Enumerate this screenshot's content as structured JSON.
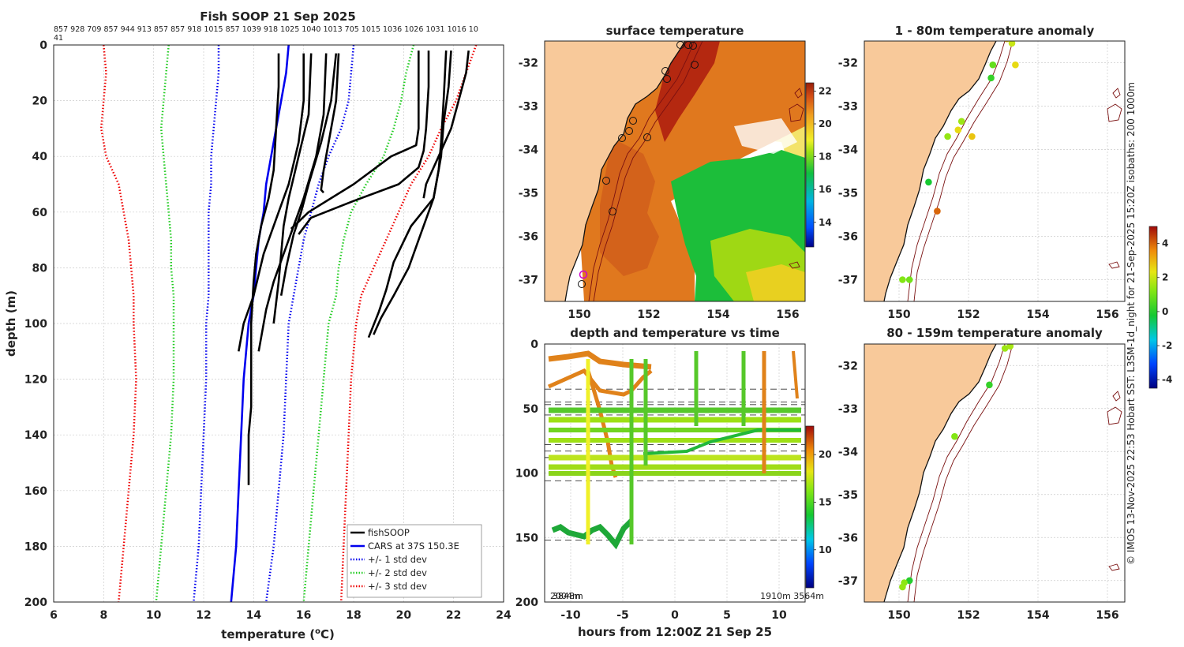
{
  "chart_data": [
    {
      "type": "line",
      "title": "Fish SOOP 21 Sep 2025",
      "xlabel": "temperature (",
      "xlabel_sup": "o",
      "xlabel_tail": "C)",
      "ylabel": "depth (m)",
      "xlim": [
        6,
        24
      ],
      "ylim": [
        0,
        200
      ],
      "xticks": [
        6,
        8,
        10,
        12,
        14,
        16,
        18,
        20,
        22,
        24
      ],
      "yticks": [
        0,
        20,
        40,
        60,
        80,
        100,
        120,
        140,
        160,
        180,
        200
      ],
      "top_labels_line1": "857 928 709 857 944 913 857 857 918 1015 857 1039 918 1025 1040 1013 705 1015 1036 1026 1031 1016 10",
      "top_labels_line2": "41",
      "legend": [
        "fishSOOP",
        "CARS at 37S 150.3E",
        "+/- 1 std dev",
        "+/- 2 std dev",
        "+/- 3 std dev"
      ],
      "series": [
        {
          "name": "CARS at 37S 150.3E",
          "color": "#0000ee",
          "style": "solid",
          "temp": [
            15.4,
            15.3,
            15.1,
            14.9,
            14.7,
            14.5,
            14.4,
            14.2,
            14.1,
            14.0,
            13.8,
            13.6,
            13.5,
            13.4,
            13.3,
            13.2,
            13.1
          ],
          "depth": [
            0,
            10,
            20,
            30,
            40,
            50,
            60,
            70,
            80,
            90,
            100,
            120,
            140,
            160,
            180,
            190,
            200
          ]
        },
        {
          "name": "-1 std",
          "color": "#0000ee",
          "style": "dot",
          "temp": [
            12.6,
            12.6,
            12.5,
            12.4,
            12.3,
            12.3,
            12.2,
            12.2,
            12.2,
            12.2,
            12.1,
            12.1,
            12.0,
            11.9,
            11.8,
            11.6
          ],
          "depth": [
            0,
            10,
            20,
            30,
            40,
            50,
            60,
            70,
            80,
            90,
            100,
            120,
            140,
            160,
            180,
            200
          ]
        },
        {
          "name": "+1 std",
          "color": "#0000ee",
          "style": "dot",
          "temp": [
            18.0,
            17.9,
            17.8,
            17.5,
            17.0,
            16.6,
            16.3,
            16.0,
            15.8,
            15.6,
            15.4,
            15.3,
            15.2,
            15.0,
            14.8,
            14.5
          ],
          "depth": [
            0,
            10,
            20,
            30,
            40,
            50,
            60,
            70,
            80,
            90,
            100,
            120,
            140,
            160,
            180,
            200
          ]
        },
        {
          "name": "-2 std",
          "color": "#22cc22",
          "style": "dot",
          "temp": [
            10.6,
            10.5,
            10.4,
            10.3,
            10.4,
            10.5,
            10.6,
            10.7,
            10.7,
            10.8,
            10.8,
            10.8,
            10.7,
            10.5,
            10.3,
            10.1
          ],
          "depth": [
            0,
            10,
            20,
            30,
            40,
            50,
            60,
            70,
            80,
            90,
            100,
            120,
            140,
            160,
            180,
            200
          ]
        },
        {
          "name": "+2 std",
          "color": "#22cc22",
          "style": "dot",
          "temp": [
            20.4,
            20.1,
            19.9,
            19.6,
            19.2,
            18.5,
            17.9,
            17.6,
            17.4,
            17.3,
            17.0,
            16.8,
            16.6,
            16.4,
            16.2,
            16.0
          ],
          "depth": [
            0,
            10,
            20,
            30,
            40,
            50,
            60,
            70,
            80,
            90,
            100,
            120,
            140,
            160,
            180,
            200
          ]
        },
        {
          "name": "-3 std",
          "color": "#ee0000",
          "style": "dot",
          "temp": [
            8.0,
            8.1,
            8.0,
            7.9,
            8.1,
            8.6,
            8.8,
            9.0,
            9.1,
            9.2,
            9.2,
            9.3,
            9.2,
            9.0,
            8.8,
            8.6
          ],
          "depth": [
            0,
            10,
            20,
            30,
            40,
            50,
            60,
            70,
            80,
            90,
            100,
            120,
            140,
            160,
            180,
            200
          ]
        },
        {
          "name": "+3 std",
          "color": "#ee0000",
          "style": "dot",
          "temp": [
            22.9,
            22.5,
            22.1,
            21.5,
            21.0,
            20.3,
            19.8,
            19.3,
            18.8,
            18.3,
            18.1,
            17.9,
            17.8,
            17.7,
            17.6,
            17.5
          ],
          "depth": [
            0,
            10,
            20,
            30,
            40,
            50,
            60,
            70,
            80,
            90,
            100,
            120,
            140,
            160,
            180,
            200
          ]
        },
        {
          "name": "fishSOOP",
          "color": "#000000",
          "style": "solid",
          "profiles": [
            {
              "temp": [
                15.0,
                15.0,
                14.9,
                14.8,
                14.6,
                14.3,
                14.1,
                14.0,
                13.9,
                13.9,
                13.9,
                13.8,
                13.8,
                13.8
              ],
              "depth": [
                3,
                15,
                30,
                45,
                55,
                65,
                75,
                85,
                100,
                115,
                130,
                140,
                150,
                158
              ]
            },
            {
              "temp": [
                16.0,
                16.0,
                15.8,
                15.4,
                15.0,
                14.4,
                14.0,
                13.6,
                13.4
              ],
              "depth": [
                3,
                20,
                35,
                50,
                60,
                75,
                90,
                100,
                110
              ]
            },
            {
              "temp": [
                16.9,
                16.8,
                16.5,
                16.0,
                15.6,
                15.2,
                14.8,
                14.5,
                14.2
              ],
              "depth": [
                3,
                25,
                40,
                55,
                65,
                75,
                85,
                95,
                110
              ]
            },
            {
              "temp": [
                17.4,
                17.3,
                17.0,
                16.8,
                16.7,
                16.8
              ],
              "depth": [
                3,
                20,
                35,
                45,
                52,
                53
              ]
            },
            {
              "temp": [
                16.3,
                16.2,
                15.8,
                15.4,
                15.2,
                15.1,
                15.0,
                14.8
              ],
              "depth": [
                3,
                25,
                40,
                55,
                65,
                75,
                85,
                100
              ]
            },
            {
              "temp": [
                17.3,
                17.1,
                16.7,
                16.2,
                15.9,
                15.6,
                15.3,
                15.1
              ],
              "depth": [
                3,
                20,
                35,
                50,
                60,
                68,
                80,
                90
              ]
            },
            {
              "temp": [
                20.6,
                20.6,
                20.6,
                20.5,
                19.5,
                18.0,
                16.2,
                15.5
              ],
              "depth": [
                2,
                20,
                30,
                36,
                40,
                50,
                60,
                66
              ]
            },
            {
              "temp": [
                21.0,
                21.0,
                20.9,
                20.8,
                20.6,
                19.8,
                18.0,
                16.3,
                15.8
              ],
              "depth": [
                2,
                15,
                30,
                38,
                44,
                50,
                56,
                62,
                68
              ]
            },
            {
              "temp": [
                21.7,
                21.6,
                21.5,
                21.4,
                21.2,
                20.3,
                19.6,
                19.3,
                19.0,
                18.6
              ],
              "depth": [
                2,
                20,
                35,
                45,
                55,
                65,
                78,
                88,
                96,
                105
              ]
            },
            {
              "temp": [
                22.6,
                22.5,
                22.2,
                21.9,
                21.4,
                20.9,
                20.8
              ],
              "depth": [
                2,
                10,
                20,
                30,
                40,
                50,
                55
              ]
            },
            {
              "temp": [
                21.9,
                21.8,
                21.6,
                21.5,
                21.3,
                21.2,
                21.0,
                20.6,
                20.2,
                19.6,
                19.1,
                18.8
              ],
              "depth": [
                2,
                15,
                28,
                40,
                50,
                55,
                60,
                70,
                80,
                90,
                98,
                104
              ]
            }
          ]
        }
      ]
    },
    {
      "type": "heatmap",
      "title": "surface temperature",
      "xticks": [
        150,
        152,
        154,
        156
      ],
      "yticks": [
        -32,
        -33,
        -34,
        -35,
        -36,
        -37
      ],
      "xlim": [
        149.0,
        156.5
      ],
      "ylim": [
        -37.5,
        -31.5
      ],
      "colorbar_ticks": [
        14,
        16,
        18,
        20,
        22
      ],
      "colorbar_range": [
        12.5,
        22.5
      ]
    },
    {
      "type": "scatter",
      "title": "depth and temperature vs time",
      "xlabel": "hours from 12:00Z 21 Sep 25",
      "xticks": [
        -10,
        -5,
        0,
        5,
        10
      ],
      "yticks": [
        0,
        50,
        100,
        150,
        200
      ],
      "xlim": [
        -12.5,
        12.5
      ],
      "ylim": [
        0,
        200
      ],
      "colorbar_ticks": [
        10,
        15,
        20
      ],
      "colorbar_range": [
        6,
        23
      ],
      "corner_label_left": "2004m",
      "corner_label_left2": "3848m",
      "corner_label_right": "1910m  3564m",
      "dashed_depths": [
        35,
        45,
        47,
        55,
        78,
        83,
        88,
        106,
        152
      ]
    },
    {
      "type": "scatter",
      "title": "1 - 80m temperature anomaly",
      "xticks": [
        150,
        152,
        154,
        156
      ],
      "yticks": [
        -32,
        -33,
        -34,
        -35,
        -36,
        -37
      ],
      "xlim": [
        149.0,
        156.5
      ],
      "ylim": [
        -37.5,
        -31.5
      ],
      "points": [
        {
          "lon": 153.1,
          "lat": -31.45,
          "anom": 2.8
        },
        {
          "lon": 153.25,
          "lat": -31.55,
          "anom": 2.0
        },
        {
          "lon": 153.35,
          "lat": -32.05,
          "anom": 2.5
        },
        {
          "lon": 152.7,
          "lat": -32.05,
          "anom": 0.8
        },
        {
          "lon": 152.65,
          "lat": -32.35,
          "anom": 0.2
        },
        {
          "lon": 151.8,
          "lat": -33.35,
          "anom": 1.5
        },
        {
          "lon": 151.7,
          "lat": -33.55,
          "anom": 2.5
        },
        {
          "lon": 152.1,
          "lat": -33.7,
          "anom": 2.8
        },
        {
          "lon": 151.4,
          "lat": -33.7,
          "anom": 1.4
        },
        {
          "lon": 150.85,
          "lat": -34.75,
          "anom": -0.2
        },
        {
          "lon": 151.1,
          "lat": -35.42,
          "anom": 4.0
        },
        {
          "lon": 150.1,
          "lat": -37.0,
          "anom": 1.2
        },
        {
          "lon": 150.3,
          "lat": -37.0,
          "anom": 1.0
        }
      ]
    },
    {
      "type": "scatter",
      "title": "80 - 159m temperature anomaly",
      "xticks": [
        150,
        152,
        154,
        156
      ],
      "yticks": [
        -32,
        -33,
        -34,
        -35,
        -36,
        -37
      ],
      "xlim": [
        149.0,
        156.5
      ],
      "ylim": [
        -37.5,
        -31.5
      ],
      "points": [
        {
          "lon": 153.05,
          "lat": -31.6,
          "anom": 1.5
        },
        {
          "lon": 153.2,
          "lat": -31.55,
          "anom": 1.6
        },
        {
          "lon": 152.6,
          "lat": -32.45,
          "anom": 0.2
        },
        {
          "lon": 151.6,
          "lat": -33.65,
          "anom": 1.2
        },
        {
          "lon": 150.3,
          "lat": -37.0,
          "anom": 0.0
        },
        {
          "lon": 150.15,
          "lat": -37.05,
          "anom": 1.3
        },
        {
          "lon": 150.1,
          "lat": -37.15,
          "anom": 1.4
        }
      ]
    }
  ],
  "anomaly_colorbar": {
    "ticks": [
      4,
      2,
      0,
      -2,
      -4
    ],
    "range": [
      -4.5,
      5
    ]
  },
  "side_caption": "© IMOS 13-Nov-2025 22:53 Hobart SST: L3SM-1d_night for 21-Sep-2025 15:20Z isobaths: 200  1000m"
}
